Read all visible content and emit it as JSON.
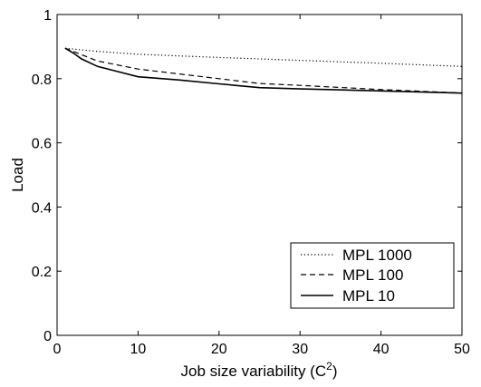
{
  "chart_data": {
    "type": "line",
    "title": "",
    "xlabel": "Job size variability (C",
    "xlabel_superscript": "2",
    "xlabel_suffix": ")",
    "ylabel": "Load",
    "xlim": [
      0,
      50
    ],
    "ylim": [
      0,
      1
    ],
    "xticks": [
      0,
      10,
      20,
      30,
      40,
      50
    ],
    "xtick_labels": [
      "0",
      "10",
      "20",
      "30",
      "40",
      "50"
    ],
    "yticks": [
      0,
      0.2,
      0.4,
      0.6,
      0.8,
      1
    ],
    "ytick_labels": [
      "0",
      "0.2",
      "0.4",
      "0.6",
      "0.8",
      "1"
    ],
    "grid": false,
    "legend_position": "bottom-right",
    "series": [
      {
        "name": "MPL 1000",
        "style": "dotted",
        "color": "#000000",
        "x": [
          1,
          5,
          10,
          20,
          30,
          40,
          50
        ],
        "y": [
          0.895,
          0.885,
          0.876,
          0.866,
          0.857,
          0.848,
          0.838
        ]
      },
      {
        "name": "MPL 100",
        "style": "dashed",
        "color": "#000000",
        "x": [
          1,
          5,
          10,
          15,
          20,
          25,
          30,
          40,
          50
        ],
        "y": [
          0.895,
          0.855,
          0.83,
          0.815,
          0.8,
          0.785,
          0.779,
          0.766,
          0.755
        ]
      },
      {
        "name": "MPL 10",
        "style": "solid",
        "color": "#000000",
        "x": [
          1,
          2,
          3,
          5,
          10,
          15,
          20,
          25,
          30,
          40,
          50
        ],
        "y": [
          0.895,
          0.88,
          0.862,
          0.838,
          0.806,
          0.796,
          0.784,
          0.772,
          0.768,
          0.762,
          0.755
        ]
      }
    ]
  }
}
